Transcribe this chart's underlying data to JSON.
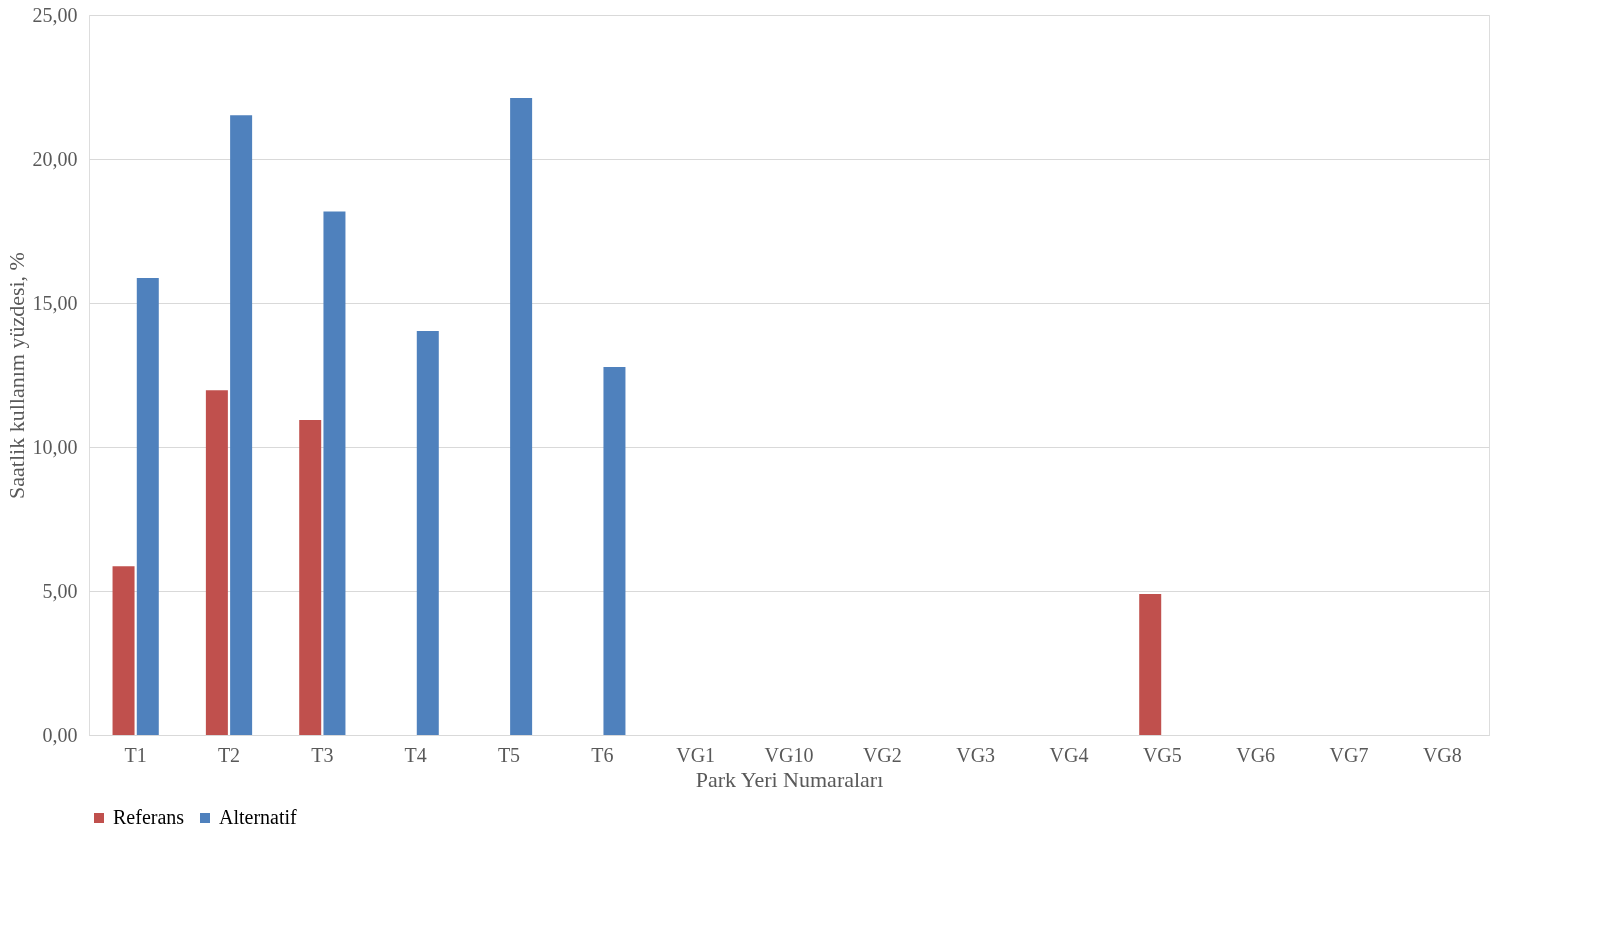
{
  "chart_data": {
    "type": "bar",
    "xlabel": "Park Yeri Numaraları",
    "ylabel": "Saatlik kullanım yüzdesi, %",
    "categories": [
      "T1",
      "T2",
      "T3",
      "T4",
      "T5",
      "T6",
      "VG1",
      "VG10",
      "VG2",
      "VG3",
      "VG4",
      "VG5",
      "VG6",
      "VG7",
      "VG8"
    ],
    "series": [
      {
        "name": "Referans",
        "color": "#c0504d",
        "values": [
          5.86,
          11.97,
          10.94,
          0,
          0,
          0,
          0,
          0,
          0,
          0,
          0,
          4.9,
          0,
          0,
          0
        ]
      },
      {
        "name": "Alternatif",
        "color": "#4f81bd",
        "values": [
          15.87,
          21.52,
          18.18,
          14.03,
          22.12,
          12.78,
          0,
          0,
          0,
          0,
          0,
          0,
          0,
          0,
          0
        ]
      }
    ],
    "ylim": [
      0,
      25
    ],
    "yticks": [
      {
        "value": 0,
        "label": "0,00"
      },
      {
        "value": 5,
        "label": "5,00"
      },
      {
        "value": 10,
        "label": "10,00"
      },
      {
        "value": 15,
        "label": "15,00"
      },
      {
        "value": 20,
        "label": "20,00"
      },
      {
        "value": 25,
        "label": "25,00"
      }
    ],
    "grid": "y",
    "legend": "bottom"
  }
}
